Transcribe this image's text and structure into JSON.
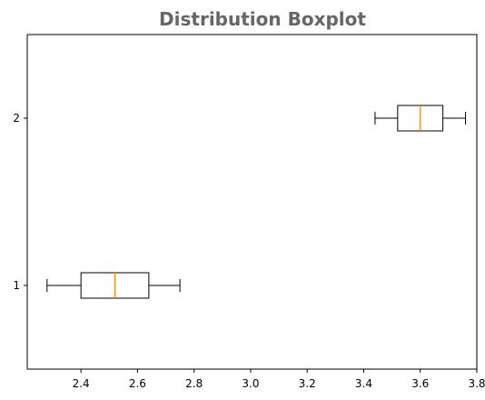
{
  "chart_data": {
    "type": "boxplot",
    "orientation": "horizontal",
    "title": "Distribution Boxplot",
    "xlabel": "",
    "ylabel": "",
    "xlim": [
      2.21,
      3.8
    ],
    "x_ticks": [
      "2.4",
      "2.6",
      "2.8",
      "3.0",
      "3.2",
      "3.4",
      "3.6",
      "3.8"
    ],
    "categories": [
      "1",
      "2"
    ],
    "series": [
      {
        "whisker_low": 2.28,
        "q1": 2.4,
        "median": 2.52,
        "q3": 2.64,
        "whisker_high": 2.75
      },
      {
        "whisker_low": 3.44,
        "q1": 3.52,
        "median": 3.6,
        "q3": 3.68,
        "whisker_high": 3.76
      }
    ],
    "grid": false,
    "colors": {
      "box": "#000000",
      "median": "#ff7f0e",
      "title": "#666666"
    }
  }
}
